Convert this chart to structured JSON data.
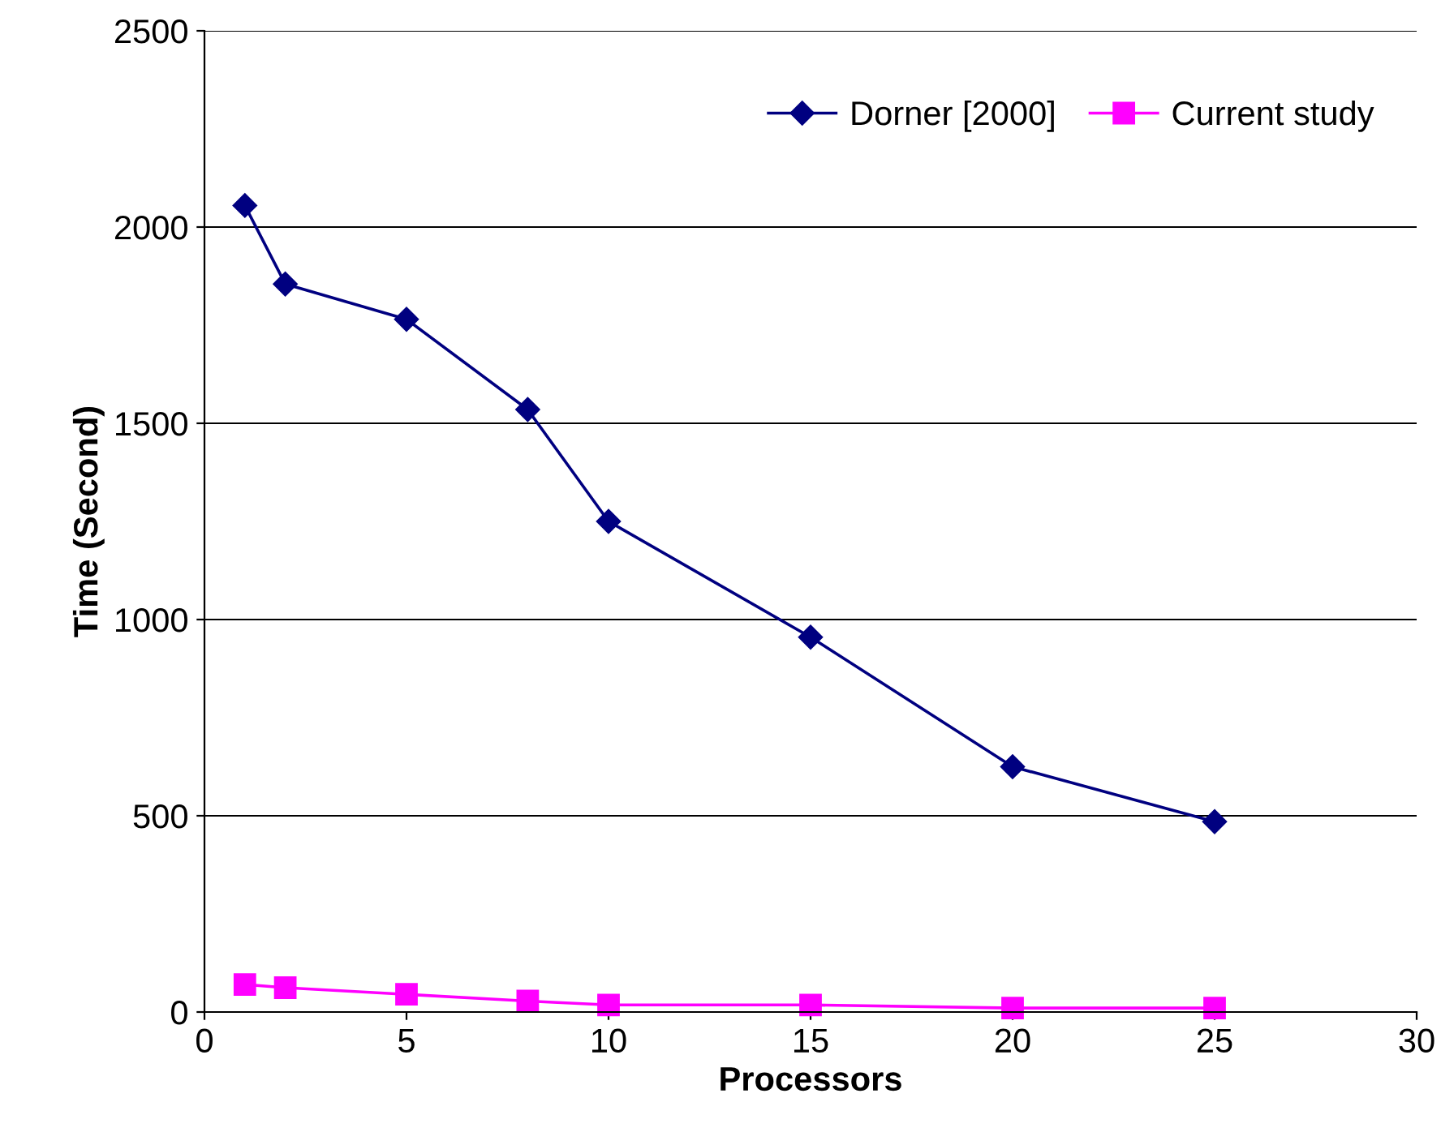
{
  "chart_data": {
    "type": "line",
    "xlabel": "Processors",
    "ylabel": "Time (Second)",
    "x": [
      1,
      2,
      5,
      8,
      10,
      15,
      20,
      25
    ],
    "series": [
      {
        "name": "Dorner [2000]",
        "color": "#000080",
        "marker": "diamond",
        "values": [
          2055,
          1855,
          1765,
          1535,
          1250,
          955,
          625,
          485
        ]
      },
      {
        "name": "Current study",
        "color": "#ff00ff",
        "marker": "square",
        "values": [
          70,
          62,
          45,
          28,
          18,
          18,
          10,
          10
        ]
      }
    ],
    "xlim": [
      0,
      30
    ],
    "xticks": [
      0,
      5,
      10,
      15,
      20,
      25,
      30
    ],
    "ylim": [
      0,
      2500
    ],
    "yticks": [
      0,
      500,
      1000,
      1500,
      2000,
      2500
    ],
    "grid": "y",
    "legend": "top right",
    "line_style": "solid"
  }
}
